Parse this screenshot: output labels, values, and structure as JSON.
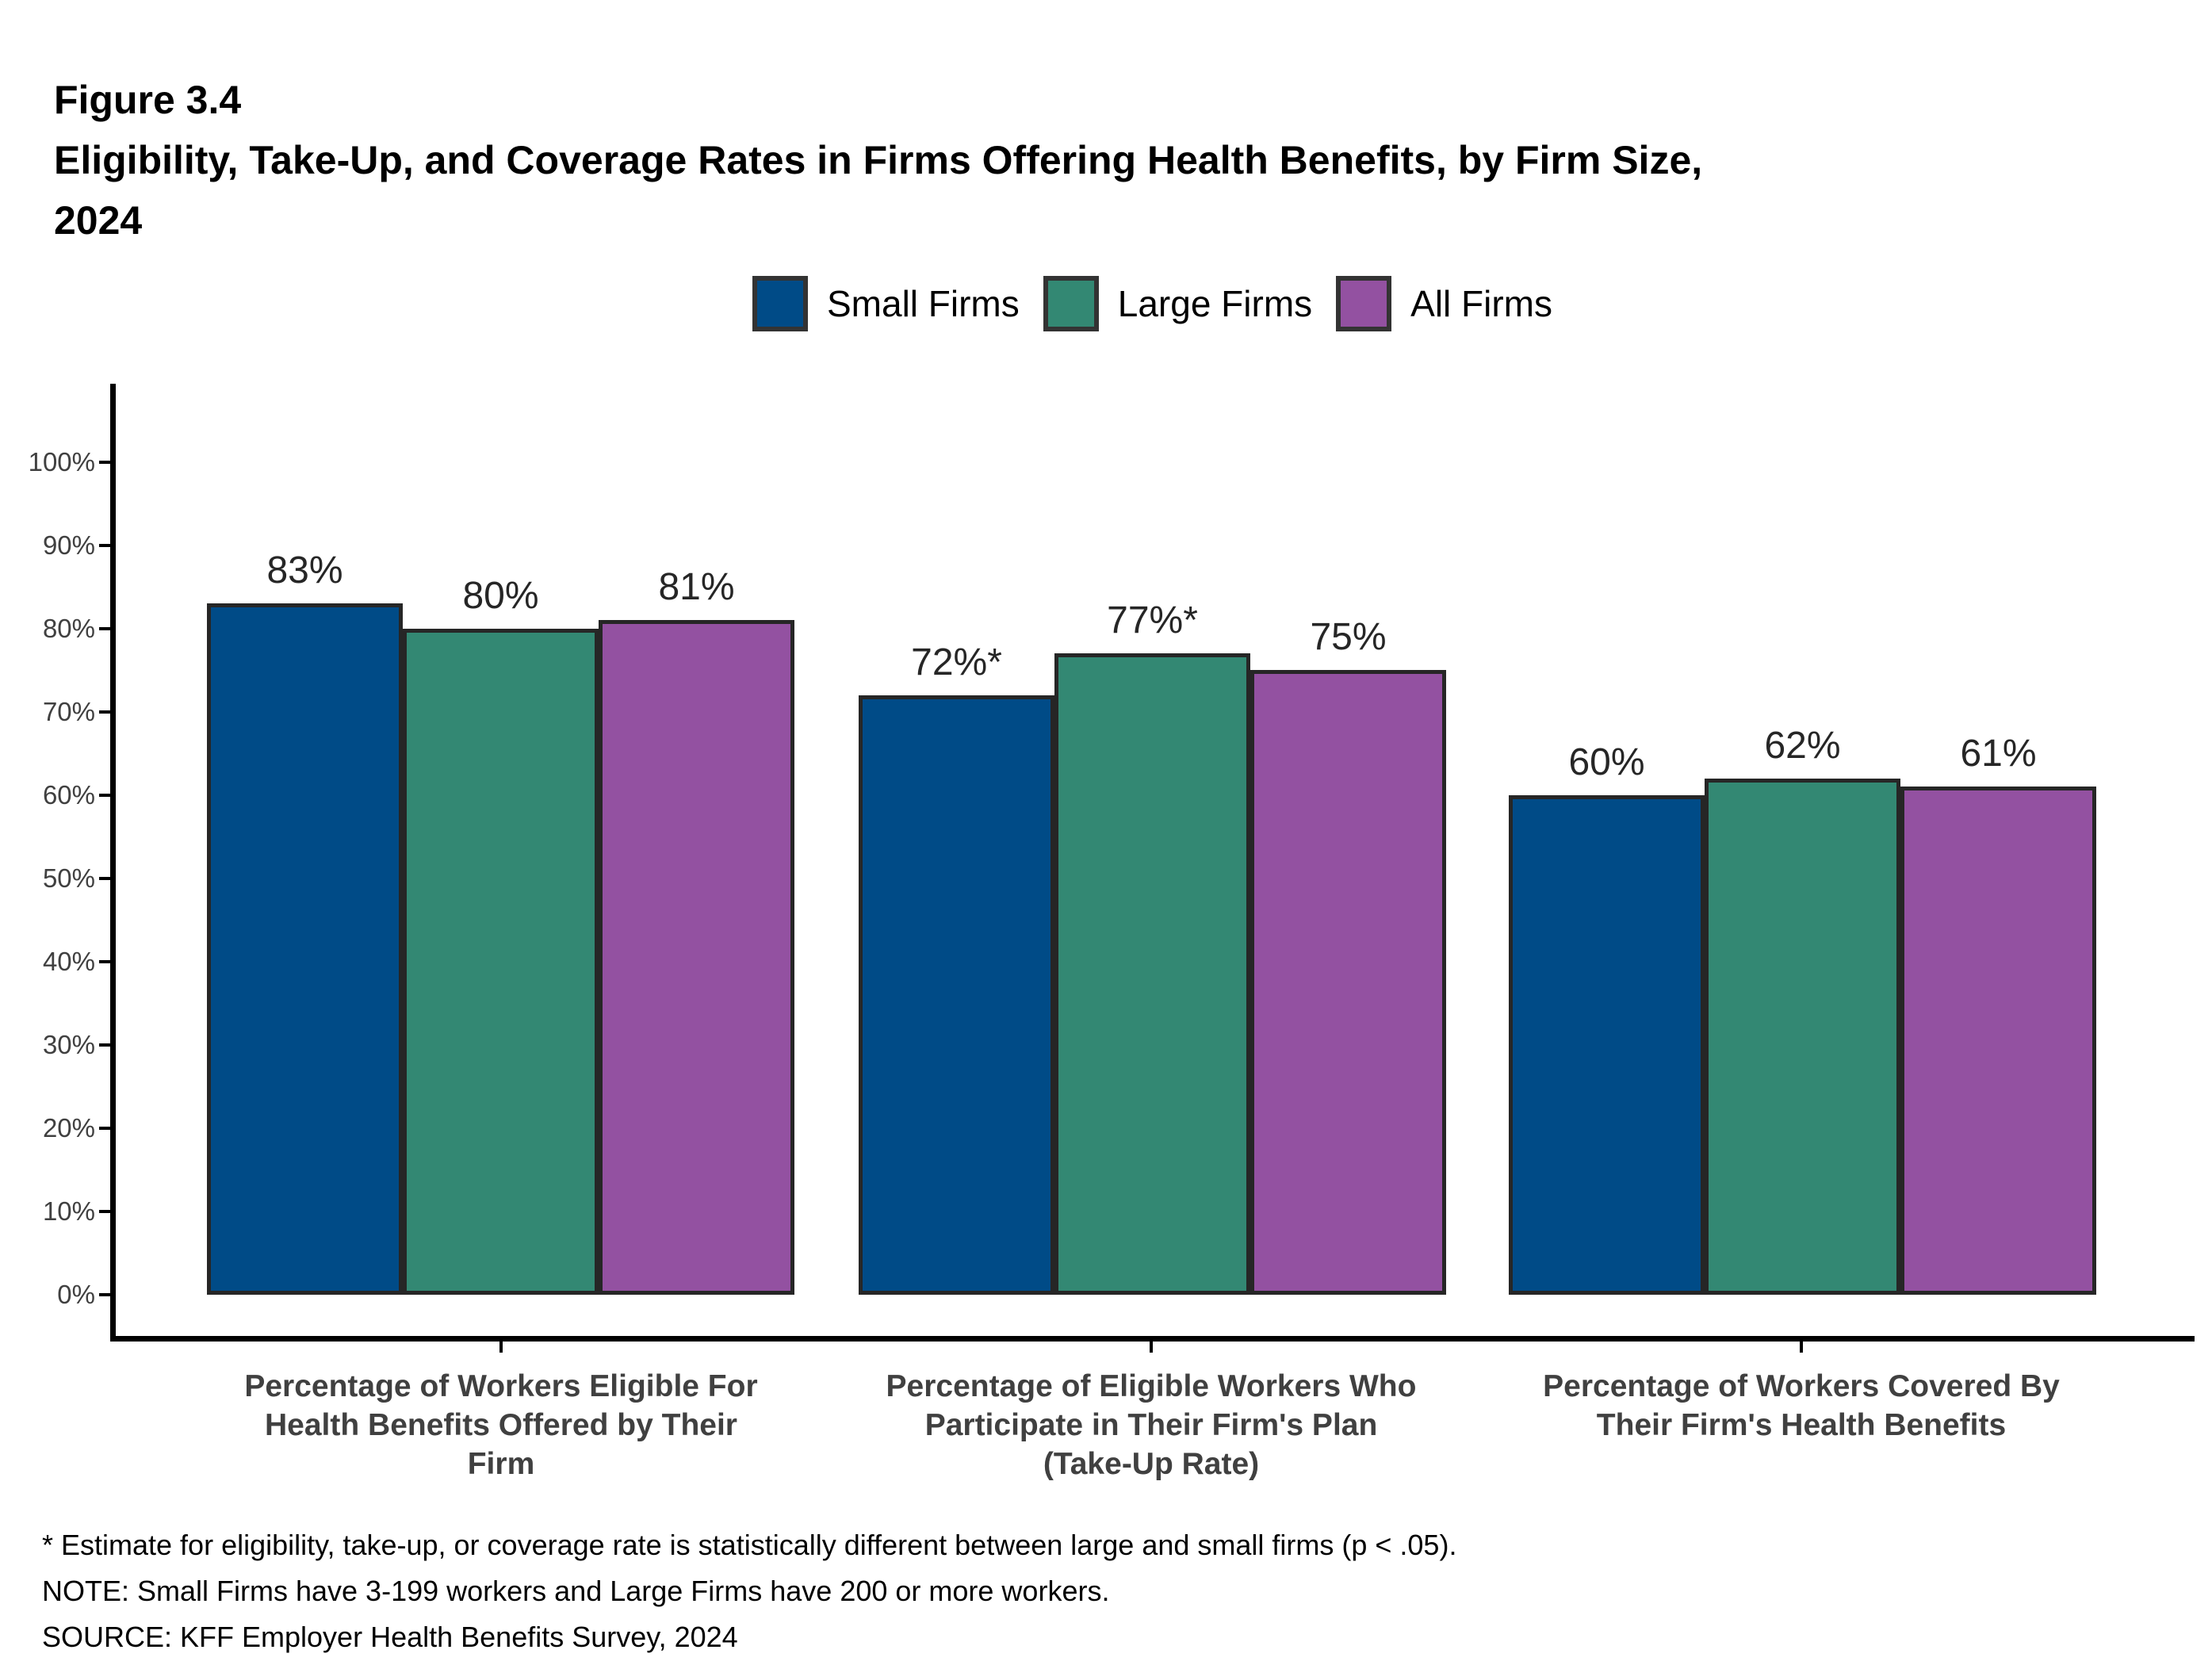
{
  "figure": {
    "label": "Figure 3.4",
    "title": "Eligibility, Take-Up, and Coverage Rates in Firms Offering Health Benefits, by Firm Size,\n2024"
  },
  "chart_data": {
    "type": "bar",
    "title": "Eligibility, Take-Up, and Coverage Rates in Firms Offering Health Benefits, by Firm Size, 2024",
    "categories": [
      "Percentage of Workers Eligible For\nHealth Benefits Offered by Their\nFirm",
      "Percentage of Eligible Workers Who\nParticipate in Their Firm's Plan\n(Take-Up Rate)",
      "Percentage of Workers Covered By\nTheir Firm's Health Benefits"
    ],
    "series": [
      {
        "name": "Small Firms",
        "color": "#004B87",
        "values": [
          83,
          72,
          60
        ],
        "labels": [
          "83%",
          "72%*",
          "60%"
        ]
      },
      {
        "name": "Large Firms",
        "color": "#338873",
        "values": [
          80,
          77,
          62
        ],
        "labels": [
          "80%",
          "77%*",
          "62%"
        ]
      },
      {
        "name": "All Firms",
        "color": "#9351A1",
        "values": [
          81,
          75,
          61
        ],
        "labels": [
          "81%",
          "75%",
          "61%"
        ]
      }
    ],
    "xlabel": "",
    "ylabel": "",
    "ylim": [
      0,
      100
    ],
    "yticks": [
      "0%",
      "10%",
      "20%",
      "30%",
      "40%",
      "50%",
      "60%",
      "70%",
      "80%",
      "90%",
      "100%"
    ],
    "grid": false,
    "legend_position": "top"
  },
  "styles": {
    "bar_border": "#262626",
    "axis_line": "#000000",
    "y_tick_label": "#404040",
    "category_label": "#404040",
    "value_label": "#262626",
    "legend_text": "#000000",
    "legend_swatch_border": "#333333"
  },
  "footnotes": [
    "* Estimate for eligibility, take-up, or coverage rate is statistically different between large and small firms (p < .05).",
    "NOTE: Small Firms have 3-199 workers and Large Firms have 200 or more workers.",
    "SOURCE: KFF Employer Health Benefits Survey, 2024"
  ]
}
